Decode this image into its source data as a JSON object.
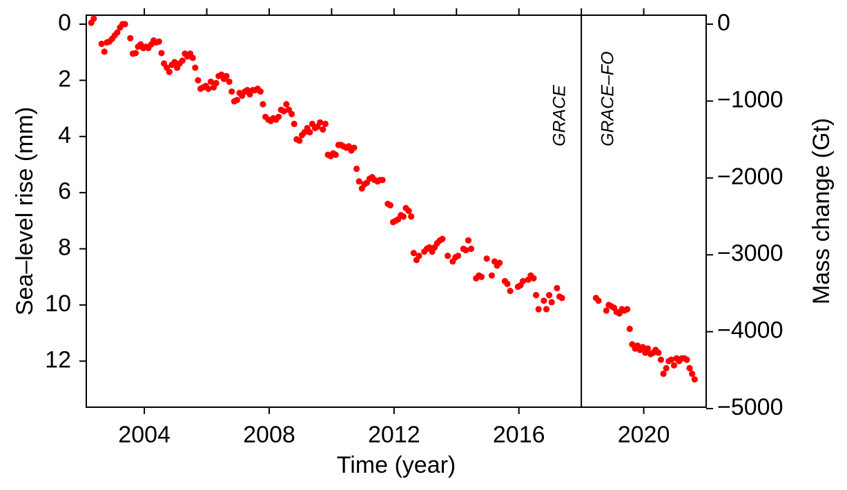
{
  "chart_data": {
    "type": "scatter",
    "xlabel": "Time (year)",
    "ylabel": "Sea–level rise (mm)",
    "y2label": "Mass change (Gt)",
    "xlim": [
      2002.14,
      2022.0
    ],
    "xticks": [
      2004,
      2008,
      2012,
      2016,
      2020
    ],
    "x2ticks": [
      2004,
      2006,
      2008,
      2010,
      2012,
      2014,
      2016,
      2018,
      2020
    ],
    "ylim": [
      -0.32,
      13.64
    ],
    "yinvert": true,
    "yticks": [
      0,
      2,
      4,
      6,
      8,
      10,
      12
    ],
    "y2lim": [
      -4982,
      117
    ],
    "y2ticks": [
      0,
      {
        "value": -1000,
        "label": "−1000"
      },
      {
        "value": -2000,
        "label": "−2000"
      },
      {
        "value": -3000,
        "label": "−3000"
      },
      {
        "value": -4000,
        "label": "−4000"
      },
      {
        "value": -5000,
        "label": "−5000"
      }
    ],
    "vlines": [
      2018
    ],
    "annotations": [
      "GRACE",
      "GRACE–FO"
    ],
    "series": [
      {
        "color": "#ff0000",
        "x": [
          2002.3,
          2002.38,
          2002.63,
          2002.72,
          2002.8,
          2002.88,
          2002.97,
          2003.05,
          2003.13,
          2003.22,
          2003.3,
          2003.38,
          2003.55,
          2003.63,
          2003.72,
          2003.8,
          2003.88,
          2003.97,
          2004.05,
          2004.13,
          2004.22,
          2004.3,
          2004.38,
          2004.47,
          2004.55,
          2004.63,
          2004.72,
          2004.8,
          2004.88,
          2004.97,
          2005.05,
          2005.13,
          2005.22,
          2005.3,
          2005.38,
          2005.47,
          2005.55,
          2005.63,
          2005.72,
          2005.8,
          2005.88,
          2005.97,
          2006.05,
          2006.13,
          2006.22,
          2006.3,
          2006.38,
          2006.47,
          2006.55,
          2006.63,
          2006.72,
          2006.8,
          2006.88,
          2006.97,
          2007.05,
          2007.13,
          2007.22,
          2007.3,
          2007.38,
          2007.47,
          2007.55,
          2007.63,
          2007.72,
          2007.8,
          2007.88,
          2007.97,
          2008.05,
          2008.13,
          2008.22,
          2008.3,
          2008.38,
          2008.47,
          2008.55,
          2008.63,
          2008.72,
          2008.8,
          2008.88,
          2008.97,
          2009.05,
          2009.13,
          2009.22,
          2009.3,
          2009.38,
          2009.47,
          2009.55,
          2009.63,
          2009.72,
          2009.8,
          2009.88,
          2009.97,
          2010.05,
          2010.13,
          2010.22,
          2010.3,
          2010.38,
          2010.47,
          2010.55,
          2010.63,
          2010.72,
          2010.8,
          2010.88,
          2010.97,
          2011.05,
          2011.13,
          2011.22,
          2011.3,
          2011.38,
          2011.47,
          2011.55,
          2011.63,
          2011.8,
          2011.88,
          2011.97,
          2012.05,
          2012.13,
          2012.22,
          2012.3,
          2012.38,
          2012.47,
          2012.55,
          2012.63,
          2012.72,
          2012.8,
          2012.97,
          2013.05,
          2013.13,
          2013.22,
          2013.3,
          2013.38,
          2013.47,
          2013.55,
          2013.72,
          2013.88,
          2013.97,
          2014.05,
          2014.22,
          2014.3,
          2014.38,
          2014.47,
          2014.63,
          2014.72,
          2014.8,
          2014.97,
          2015.13,
          2015.22,
          2015.3,
          2015.38,
          2015.55,
          2015.63,
          2015.72,
          2015.97,
          2016.05,
          2016.13,
          2016.3,
          2016.38,
          2016.47,
          2016.55,
          2016.63,
          2016.8,
          2016.88,
          2016.97,
          2017.05,
          2017.22,
          2017.3,
          2017.38,
          2018.47,
          2018.55,
          2018.8,
          2018.88,
          2018.97,
          2019.05,
          2019.13,
          2019.22,
          2019.3,
          2019.38,
          2019.47,
          2019.55,
          2019.63,
          2019.72,
          2019.8,
          2019.88,
          2019.97,
          2020.05,
          2020.13,
          2020.22,
          2020.3,
          2020.38,
          2020.47,
          2020.55,
          2020.63,
          2020.72,
          2020.8,
          2020.88,
          2020.97,
          2021.05,
          2021.13,
          2021.22,
          2021.3,
          2021.38,
          2021.47,
          2021.55,
          2021.63
        ],
        "values": [
          -0.05,
          -0.2,
          0.7,
          0.98,
          0.65,
          0.62,
          0.52,
          0.4,
          0.3,
          0.12,
          0.0,
          0.0,
          0.5,
          1.05,
          1.03,
          0.8,
          0.72,
          0.85,
          0.8,
          0.85,
          0.72,
          0.58,
          0.65,
          0.62,
          1.03,
          1.4,
          1.55,
          1.7,
          1.45,
          1.35,
          1.55,
          1.4,
          1.3,
          1.05,
          1.15,
          1.05,
          1.2,
          1.55,
          2.0,
          2.3,
          2.25,
          2.2,
          2.3,
          2.05,
          2.25,
          2.1,
          1.85,
          1.8,
          1.95,
          1.85,
          2.05,
          2.4,
          2.75,
          2.7,
          2.45,
          2.55,
          2.4,
          2.35,
          2.5,
          2.35,
          2.35,
          2.3,
          2.4,
          2.85,
          3.3,
          3.4,
          3.45,
          3.35,
          3.4,
          3.3,
          3.05,
          3.1,
          2.85,
          3.05,
          3.2,
          3.55,
          4.1,
          4.15,
          3.95,
          3.85,
          3.7,
          3.85,
          3.55,
          3.7,
          3.65,
          3.5,
          3.75,
          3.55,
          4.65,
          4.7,
          4.6,
          4.65,
          4.3,
          4.3,
          4.35,
          4.4,
          4.35,
          4.5,
          4.4,
          5.15,
          5.6,
          5.85,
          5.7,
          5.65,
          5.5,
          5.45,
          5.55,
          5.6,
          5.55,
          5.55,
          6.4,
          6.45,
          7.05,
          7.0,
          6.95,
          6.8,
          6.85,
          6.55,
          6.65,
          6.85,
          8.15,
          8.4,
          8.25,
          8.1,
          8.0,
          7.95,
          8.1,
          7.95,
          7.8,
          7.7,
          7.65,
          8.25,
          8.45,
          8.3,
          8.25,
          8.0,
          8.05,
          7.7,
          8.0,
          9.05,
          8.95,
          9.0,
          8.35,
          8.95,
          8.45,
          8.6,
          8.5,
          9.15,
          9.25,
          9.5,
          9.35,
          9.3,
          9.15,
          9.1,
          8.95,
          9.05,
          9.65,
          10.15,
          9.85,
          10.15,
          9.65,
          9.9,
          9.4,
          9.7,
          9.75,
          9.75,
          9.85,
          10.2,
          10.0,
          10.05,
          10.1,
          10.25,
          10.3,
          10.15,
          10.2,
          10.15,
          10.85,
          11.4,
          11.55,
          11.45,
          11.6,
          11.5,
          11.7,
          11.55,
          11.75,
          11.7,
          11.6,
          11.7,
          11.95,
          12.45,
          12.25,
          12.0,
          11.95,
          12.15,
          11.9,
          12.0,
          11.9,
          11.9,
          11.95,
          12.25,
          12.45,
          12.65
        ]
      }
    ]
  }
}
